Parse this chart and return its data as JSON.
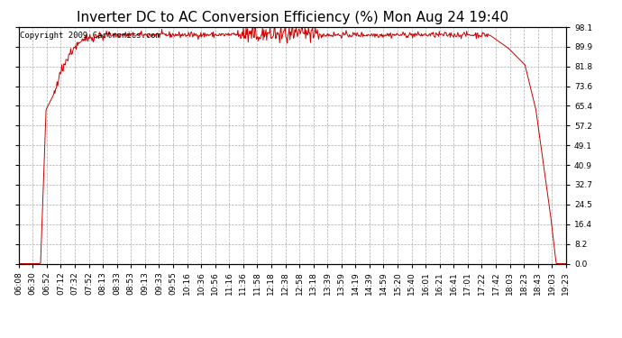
{
  "title": "Inverter DC to AC Conversion Efficiency (%) Mon Aug 24 19:40",
  "copyright_text": "Copyright 2009 Cartronics.com",
  "background_color": "#ffffff",
  "plot_background_color": "#ffffff",
  "grid_color": "#aaaaaa",
  "line_color": "#cc0000",
  "line_width": 0.7,
  "ylim": [
    0.0,
    98.1
  ],
  "yticks": [
    0.0,
    8.2,
    16.4,
    24.5,
    32.7,
    40.9,
    49.1,
    57.2,
    65.4,
    73.6,
    81.8,
    89.9,
    98.1
  ],
  "x_tick_labels": [
    "06:08",
    "06:30",
    "06:52",
    "07:12",
    "07:32",
    "07:52",
    "08:13",
    "08:33",
    "08:53",
    "09:13",
    "09:33",
    "09:55",
    "10:16",
    "10:36",
    "10:56",
    "11:16",
    "11:36",
    "11:58",
    "12:18",
    "12:38",
    "12:58",
    "13:18",
    "13:39",
    "13:59",
    "14:19",
    "14:39",
    "14:59",
    "15:20",
    "15:40",
    "16:01",
    "16:21",
    "16:41",
    "17:01",
    "17:22",
    "17:42",
    "18:03",
    "18:23",
    "18:43",
    "19:03",
    "19:23"
  ],
  "title_fontsize": 11,
  "copyright_fontsize": 6.5,
  "tick_fontsize": 6.5,
  "figsize": [
    6.9,
    3.75
  ],
  "dpi": 100
}
